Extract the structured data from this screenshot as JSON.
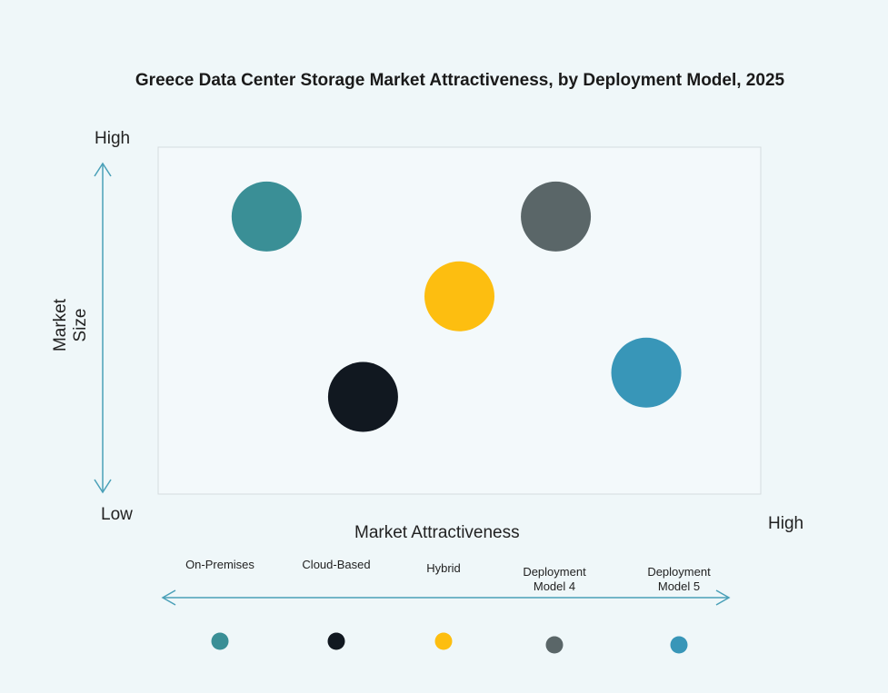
{
  "chart_data": {
    "type": "scatter",
    "title": "Greece Data Center Storage Market Attractiveness,  by Deployment Model, 2025",
    "xlabel": "Market Attractiveness",
    "ylabel": "Market Size",
    "x_low": "Low",
    "x_high": "High",
    "y_high": "High",
    "y_low": "Low",
    "xlim": [
      0,
      10
    ],
    "ylim": [
      0,
      10
    ],
    "grid": false,
    "legend_position": "bottom",
    "series": [
      {
        "name": "On-Premises",
        "x": 1.8,
        "y": 8.0,
        "color": "#3a8f96"
      },
      {
        "name": "Cloud-Based",
        "x": 3.4,
        "y": 2.8,
        "color": "#111820"
      },
      {
        "name": "Hybrid",
        "x": 5.0,
        "y": 5.7,
        "color": "#fdbe10"
      },
      {
        "name": "Deployment Model 4",
        "x": 6.6,
        "y": 8.0,
        "color": "#5a6668"
      },
      {
        "name": "Deployment Model 5",
        "x": 8.1,
        "y": 3.5,
        "color": "#3896b8"
      }
    ]
  }
}
